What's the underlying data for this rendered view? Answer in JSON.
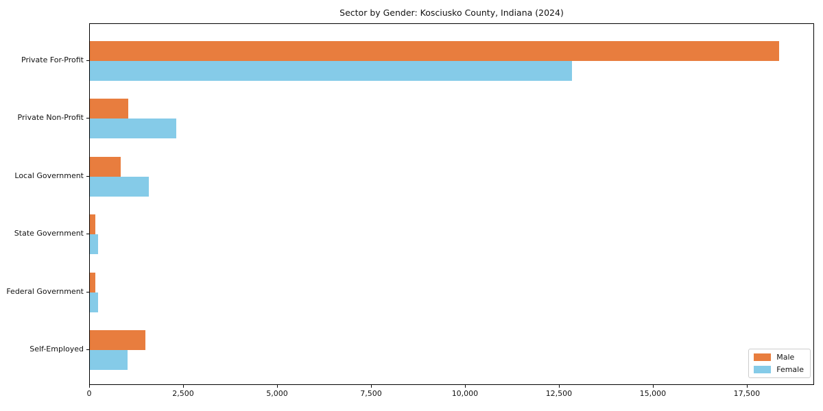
{
  "chart_data": {
    "type": "bar",
    "orientation": "horizontal",
    "title": "Sector by Gender: Kosciusko County, Indiana (2024)",
    "categories": [
      "Private For-Profit",
      "Private Non-Profit",
      "Local Government",
      "State Government",
      "Federal Government",
      "Self-Employed"
    ],
    "series": [
      {
        "name": "Male",
        "color": "#e87d3e",
        "values": [
          18340,
          1020,
          820,
          150,
          140,
          1480
        ]
      },
      {
        "name": "Female",
        "color": "#85cbe8",
        "values": [
          12830,
          2300,
          1570,
          220,
          210,
          1000
        ]
      }
    ],
    "xlabel": "",
    "ylabel": "",
    "xlim": [
      0,
      19290
    ],
    "xticks": [
      0,
      2500,
      5000,
      7500,
      10000,
      12500,
      15000,
      17500
    ],
    "xtick_labels": [
      "0",
      "2,500",
      "5,000",
      "7,500",
      "10,000",
      "12,500",
      "15,000",
      "17,500"
    ],
    "grid": false,
    "legend": {
      "position": "lower right",
      "entries": [
        "Male",
        "Female"
      ]
    },
    "colors": {
      "axis": "#000000",
      "text": "#111111",
      "legend_border": "#cccccc",
      "background": "#ffffff"
    }
  }
}
